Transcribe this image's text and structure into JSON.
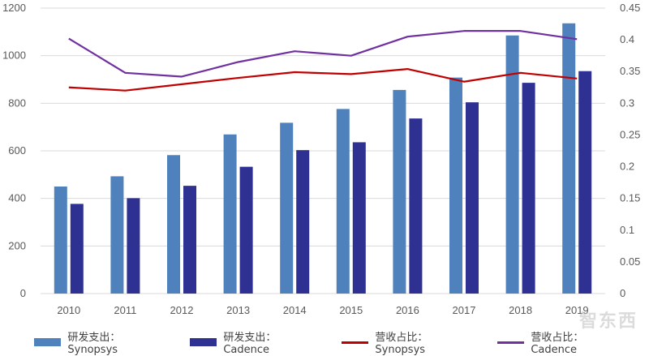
{
  "chart_data": {
    "type": "bar+line",
    "categories": [
      "2010",
      "2011",
      "2012",
      "2013",
      "2014",
      "2015",
      "2016",
      "2017",
      "2018",
      "2019"
    ],
    "bar_series": [
      {
        "name": "研发支出：Synopsys",
        "color": "#4f81bd",
        "values": [
          450,
          493,
          582,
          669,
          718,
          776,
          856,
          908,
          1085,
          1136
        ]
      },
      {
        "name": "研发支出：Cadence",
        "color": "#2e3192",
        "values": [
          377,
          401,
          453,
          533,
          603,
          636,
          736,
          804,
          886,
          935
        ]
      }
    ],
    "line_series": [
      {
        "name": "营收占比：Synopsys",
        "color": "#c00000",
        "values": [
          0.325,
          0.32,
          0.33,
          0.34,
          0.349,
          0.346,
          0.354,
          0.334,
          0.348,
          0.339
        ]
      },
      {
        "name": "营收占比：Cadence",
        "color": "#7030a0",
        "values": [
          0.402,
          0.348,
          0.342,
          0.365,
          0.382,
          0.375,
          0.405,
          0.414,
          0.414,
          0.401
        ]
      }
    ],
    "y_left": {
      "min": 0,
      "max": 1200,
      "ticks": [
        "0",
        "200",
        "400",
        "600",
        "800",
        "1000",
        "1200"
      ]
    },
    "y_right": {
      "min": 0,
      "max": 0.45,
      "ticks": [
        "0",
        "0.05",
        "0.1",
        "0.15",
        "0.2",
        "0.25",
        "0.3",
        "0.35",
        "0.4",
        "0.45"
      ]
    },
    "gridlines": true,
    "legend_position": "bottom"
  },
  "legend": {
    "items": [
      "研发支出：Synopsys",
      "研发支出：Cadence",
      "营收占比：Synopsys",
      "营收占比：Cadence"
    ]
  },
  "watermark": "智东西"
}
